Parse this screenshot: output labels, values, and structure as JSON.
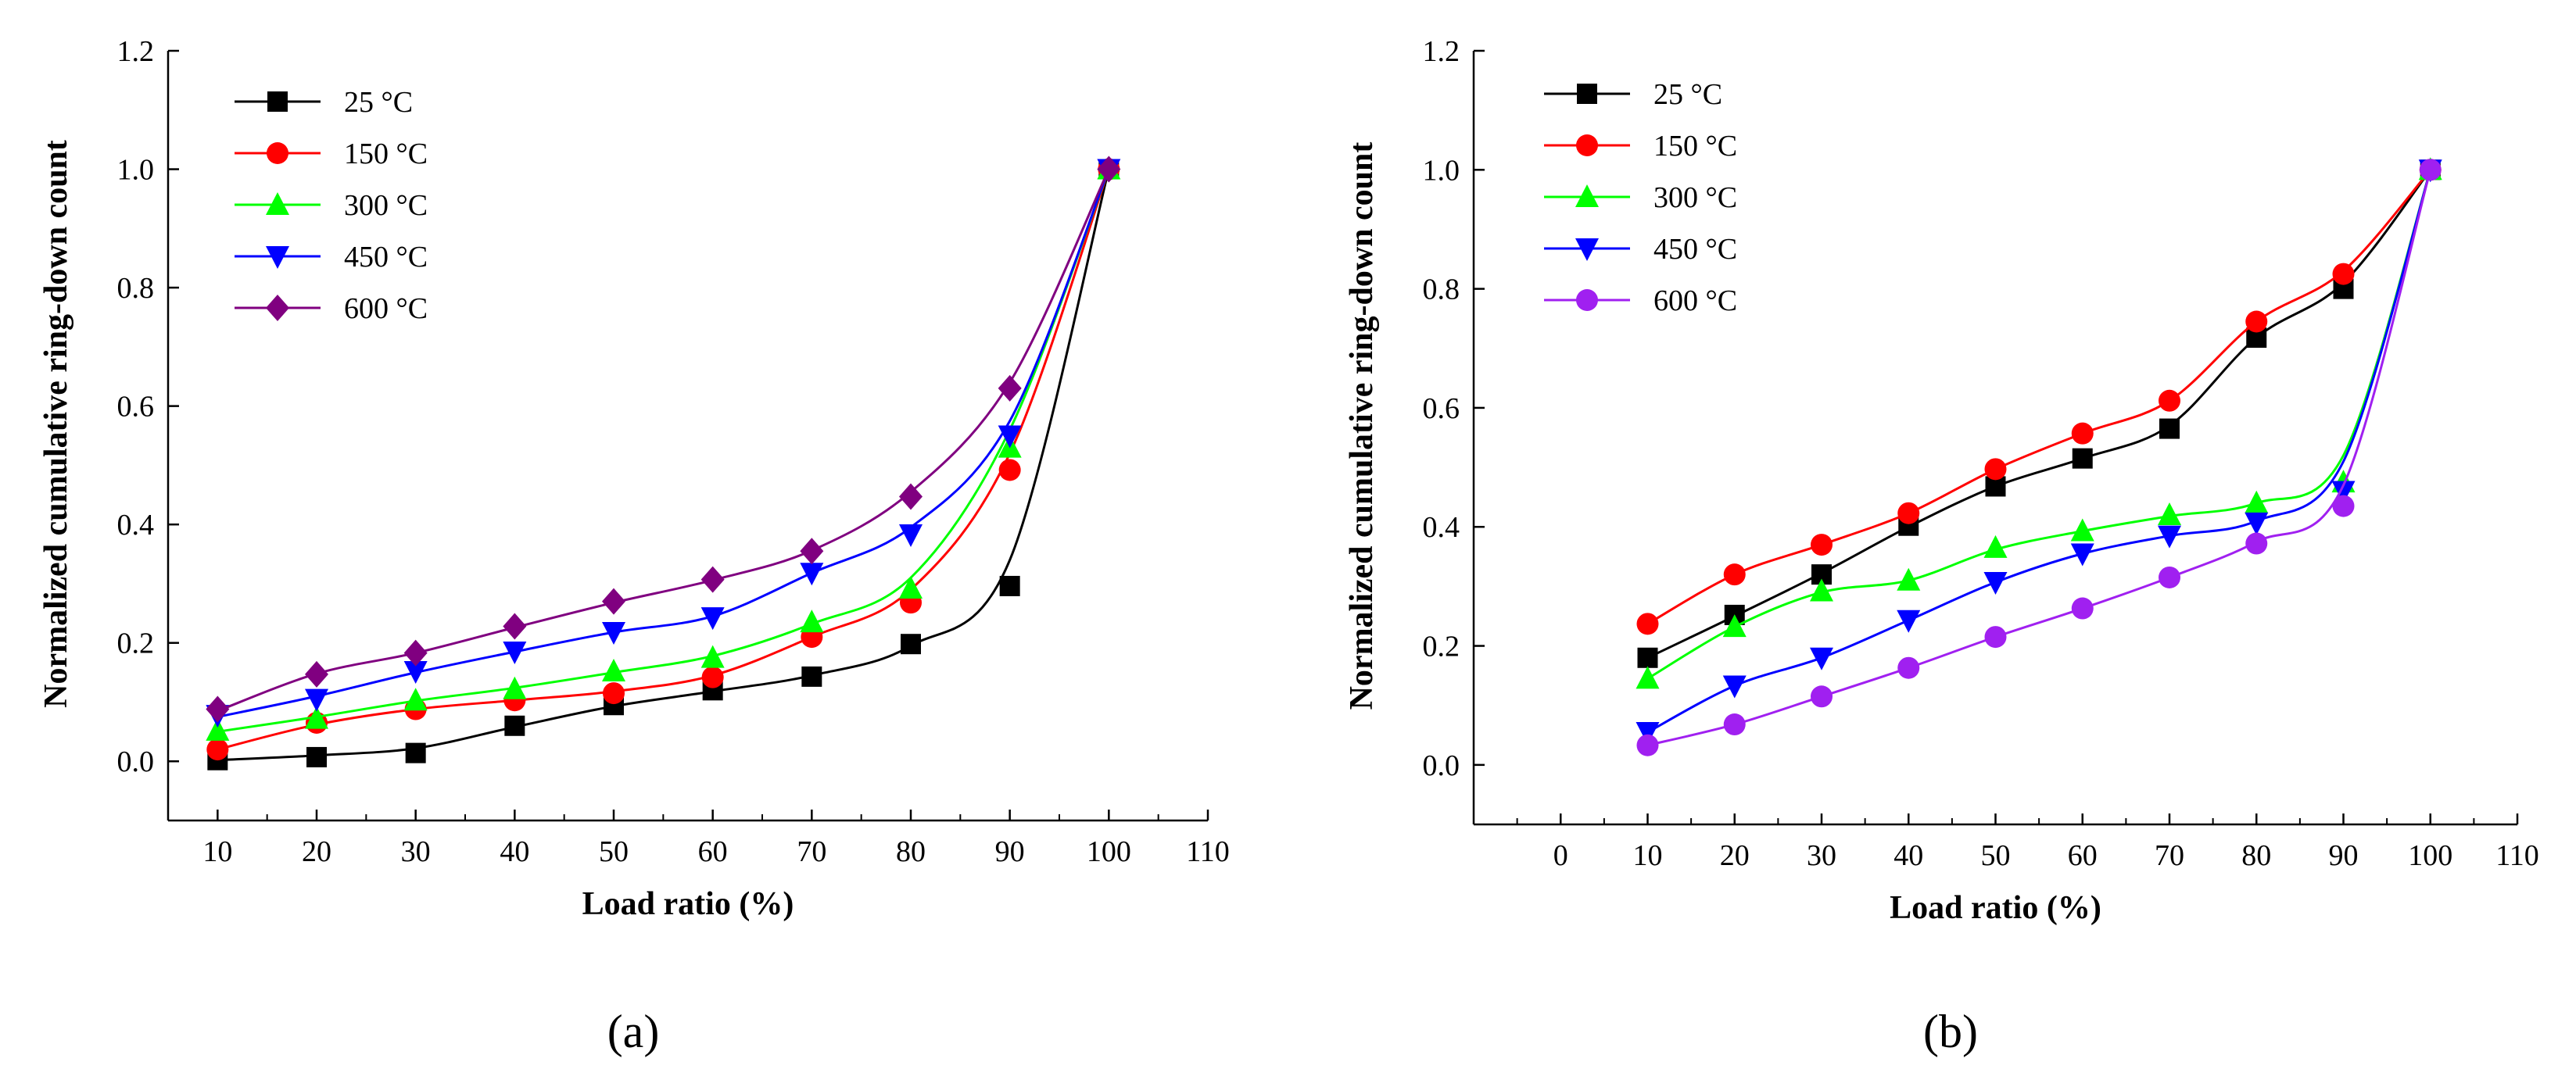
{
  "chart_data": [
    {
      "type": "line",
      "panel_label": "(a)",
      "xlabel": "Load ratio (%)",
      "ylabel": "Normalized cumulative ring-down count",
      "xlim": [
        5,
        110
      ],
      "ylim": [
        -0.1,
        1.2
      ],
      "xticks": [
        10,
        20,
        30,
        40,
        50,
        60,
        70,
        80,
        90,
        100,
        110
      ],
      "yticks": [
        0.0,
        0.2,
        0.4,
        0.6,
        0.8,
        1.0,
        1.2
      ],
      "ytick_labels": [
        "0.0",
        "0.2",
        "0.4",
        "0.6",
        "0.8",
        "1.0",
        "1.2"
      ],
      "grid": false,
      "legend_position": "top-left",
      "x": [
        10,
        20,
        30,
        40,
        50,
        60,
        70,
        80,
        90,
        100
      ],
      "series": [
        {
          "name": "25 °C",
          "color": "#000000",
          "marker": "square",
          "values": [
            0.002,
            0.007,
            0.014,
            0.06,
            0.095,
            0.12,
            0.143,
            0.198,
            0.296,
            1.0
          ],
          "fit": [
            0.002,
            0.01,
            0.022,
            0.058,
            0.093,
            0.118,
            0.145,
            0.195,
            0.34,
            1.0
          ]
        },
        {
          "name": "150 °C",
          "color": "#ff0000",
          "marker": "circle",
          "values": [
            0.02,
            0.065,
            0.088,
            0.103,
            0.115,
            0.142,
            0.21,
            0.268,
            0.492,
            1.0
          ],
          "fit": [
            0.02,
            0.062,
            0.088,
            0.103,
            0.118,
            0.145,
            0.21,
            0.29,
            0.52,
            1.0
          ]
        },
        {
          "name": "300 °C",
          "color": "#00ff00",
          "marker": "triangle-up",
          "values": [
            0.052,
            0.072,
            0.103,
            0.122,
            0.152,
            0.175,
            0.235,
            0.292,
            0.53,
            1.0
          ],
          "fit": [
            0.05,
            0.075,
            0.102,
            0.124,
            0.15,
            0.178,
            0.232,
            0.31,
            0.56,
            1.0
          ]
        },
        {
          "name": "450 °C",
          "color": "#0000ff",
          "marker": "triangle-down",
          "values": [
            0.078,
            0.105,
            0.152,
            0.185,
            0.218,
            0.243,
            0.318,
            0.383,
            0.55,
            1.0
          ],
          "fit": [
            0.075,
            0.11,
            0.15,
            0.185,
            0.218,
            0.245,
            0.318,
            0.395,
            0.575,
            1.0
          ]
        },
        {
          "name": "600 °C",
          "color": "#800080",
          "marker": "diamond",
          "values": [
            0.088,
            0.147,
            0.183,
            0.228,
            0.27,
            0.307,
            0.355,
            0.447,
            0.63,
            1.0
          ],
          "fit": [
            0.085,
            0.148,
            0.183,
            0.226,
            0.268,
            0.306,
            0.356,
            0.455,
            0.64,
            1.0
          ]
        }
      ]
    },
    {
      "type": "line",
      "panel_label": "(b)",
      "xlabel": "Load ratio (%)",
      "ylabel": "Normalized cumulative ring-down count",
      "xlim": [
        -10,
        110
      ],
      "ylim": [
        -0.1,
        1.2
      ],
      "xticks": [
        0,
        10,
        20,
        30,
        40,
        50,
        60,
        70,
        80,
        90,
        100,
        110
      ],
      "yticks": [
        0.0,
        0.2,
        0.4,
        0.6,
        0.8,
        1.0,
        1.2
      ],
      "ytick_labels": [
        "0.0",
        "0.2",
        "0.4",
        "0.6",
        "0.8",
        "1.0",
        "1.2"
      ],
      "grid": false,
      "legend_position": "top-left",
      "x": [
        10,
        20,
        30,
        40,
        50,
        60,
        70,
        80,
        90,
        100
      ],
      "series": [
        {
          "name": "25 °C",
          "color": "#000000",
          "marker": "square",
          "values": [
            0.18,
            0.252,
            0.32,
            0.402,
            0.468,
            0.515,
            0.565,
            0.718,
            0.8,
            1.0
          ],
          "fit": [
            0.18,
            0.25,
            0.322,
            0.4,
            0.468,
            0.515,
            0.57,
            0.718,
            0.81,
            1.0
          ]
        },
        {
          "name": "150 °C",
          "color": "#ff0000",
          "marker": "circle",
          "values": [
            0.237,
            0.32,
            0.37,
            0.423,
            0.497,
            0.557,
            0.612,
            0.745,
            0.825,
            1.0
          ],
          "fit": [
            0.237,
            0.32,
            0.37,
            0.423,
            0.497,
            0.557,
            0.612,
            0.745,
            0.83,
            1.0
          ]
        },
        {
          "name": "300 °C",
          "color": "#00ff00",
          "marker": "triangle-up",
          "values": [
            0.145,
            0.232,
            0.292,
            0.31,
            0.365,
            0.393,
            0.42,
            0.44,
            0.475,
            1.0
          ],
          "fit": [
            0.145,
            0.232,
            0.29,
            0.31,
            0.362,
            0.393,
            0.418,
            0.44,
            0.52,
            1.0
          ]
        },
        {
          "name": "450 °C",
          "color": "#0000ff",
          "marker": "triangle-down",
          "values": [
            0.055,
            0.133,
            0.18,
            0.243,
            0.307,
            0.355,
            0.385,
            0.407,
            0.46,
            1.0
          ],
          "fit": [
            0.055,
            0.133,
            0.18,
            0.243,
            0.307,
            0.355,
            0.385,
            0.41,
            0.51,
            1.0
          ]
        },
        {
          "name": "600 °C",
          "color": "#a020f0",
          "marker": "circle",
          "values": [
            0.033,
            0.068,
            0.115,
            0.163,
            0.215,
            0.263,
            0.315,
            0.372,
            0.435,
            1.0
          ],
          "fit": [
            0.033,
            0.068,
            0.115,
            0.163,
            0.215,
            0.263,
            0.315,
            0.375,
            0.47,
            1.0
          ]
        }
      ]
    }
  ]
}
